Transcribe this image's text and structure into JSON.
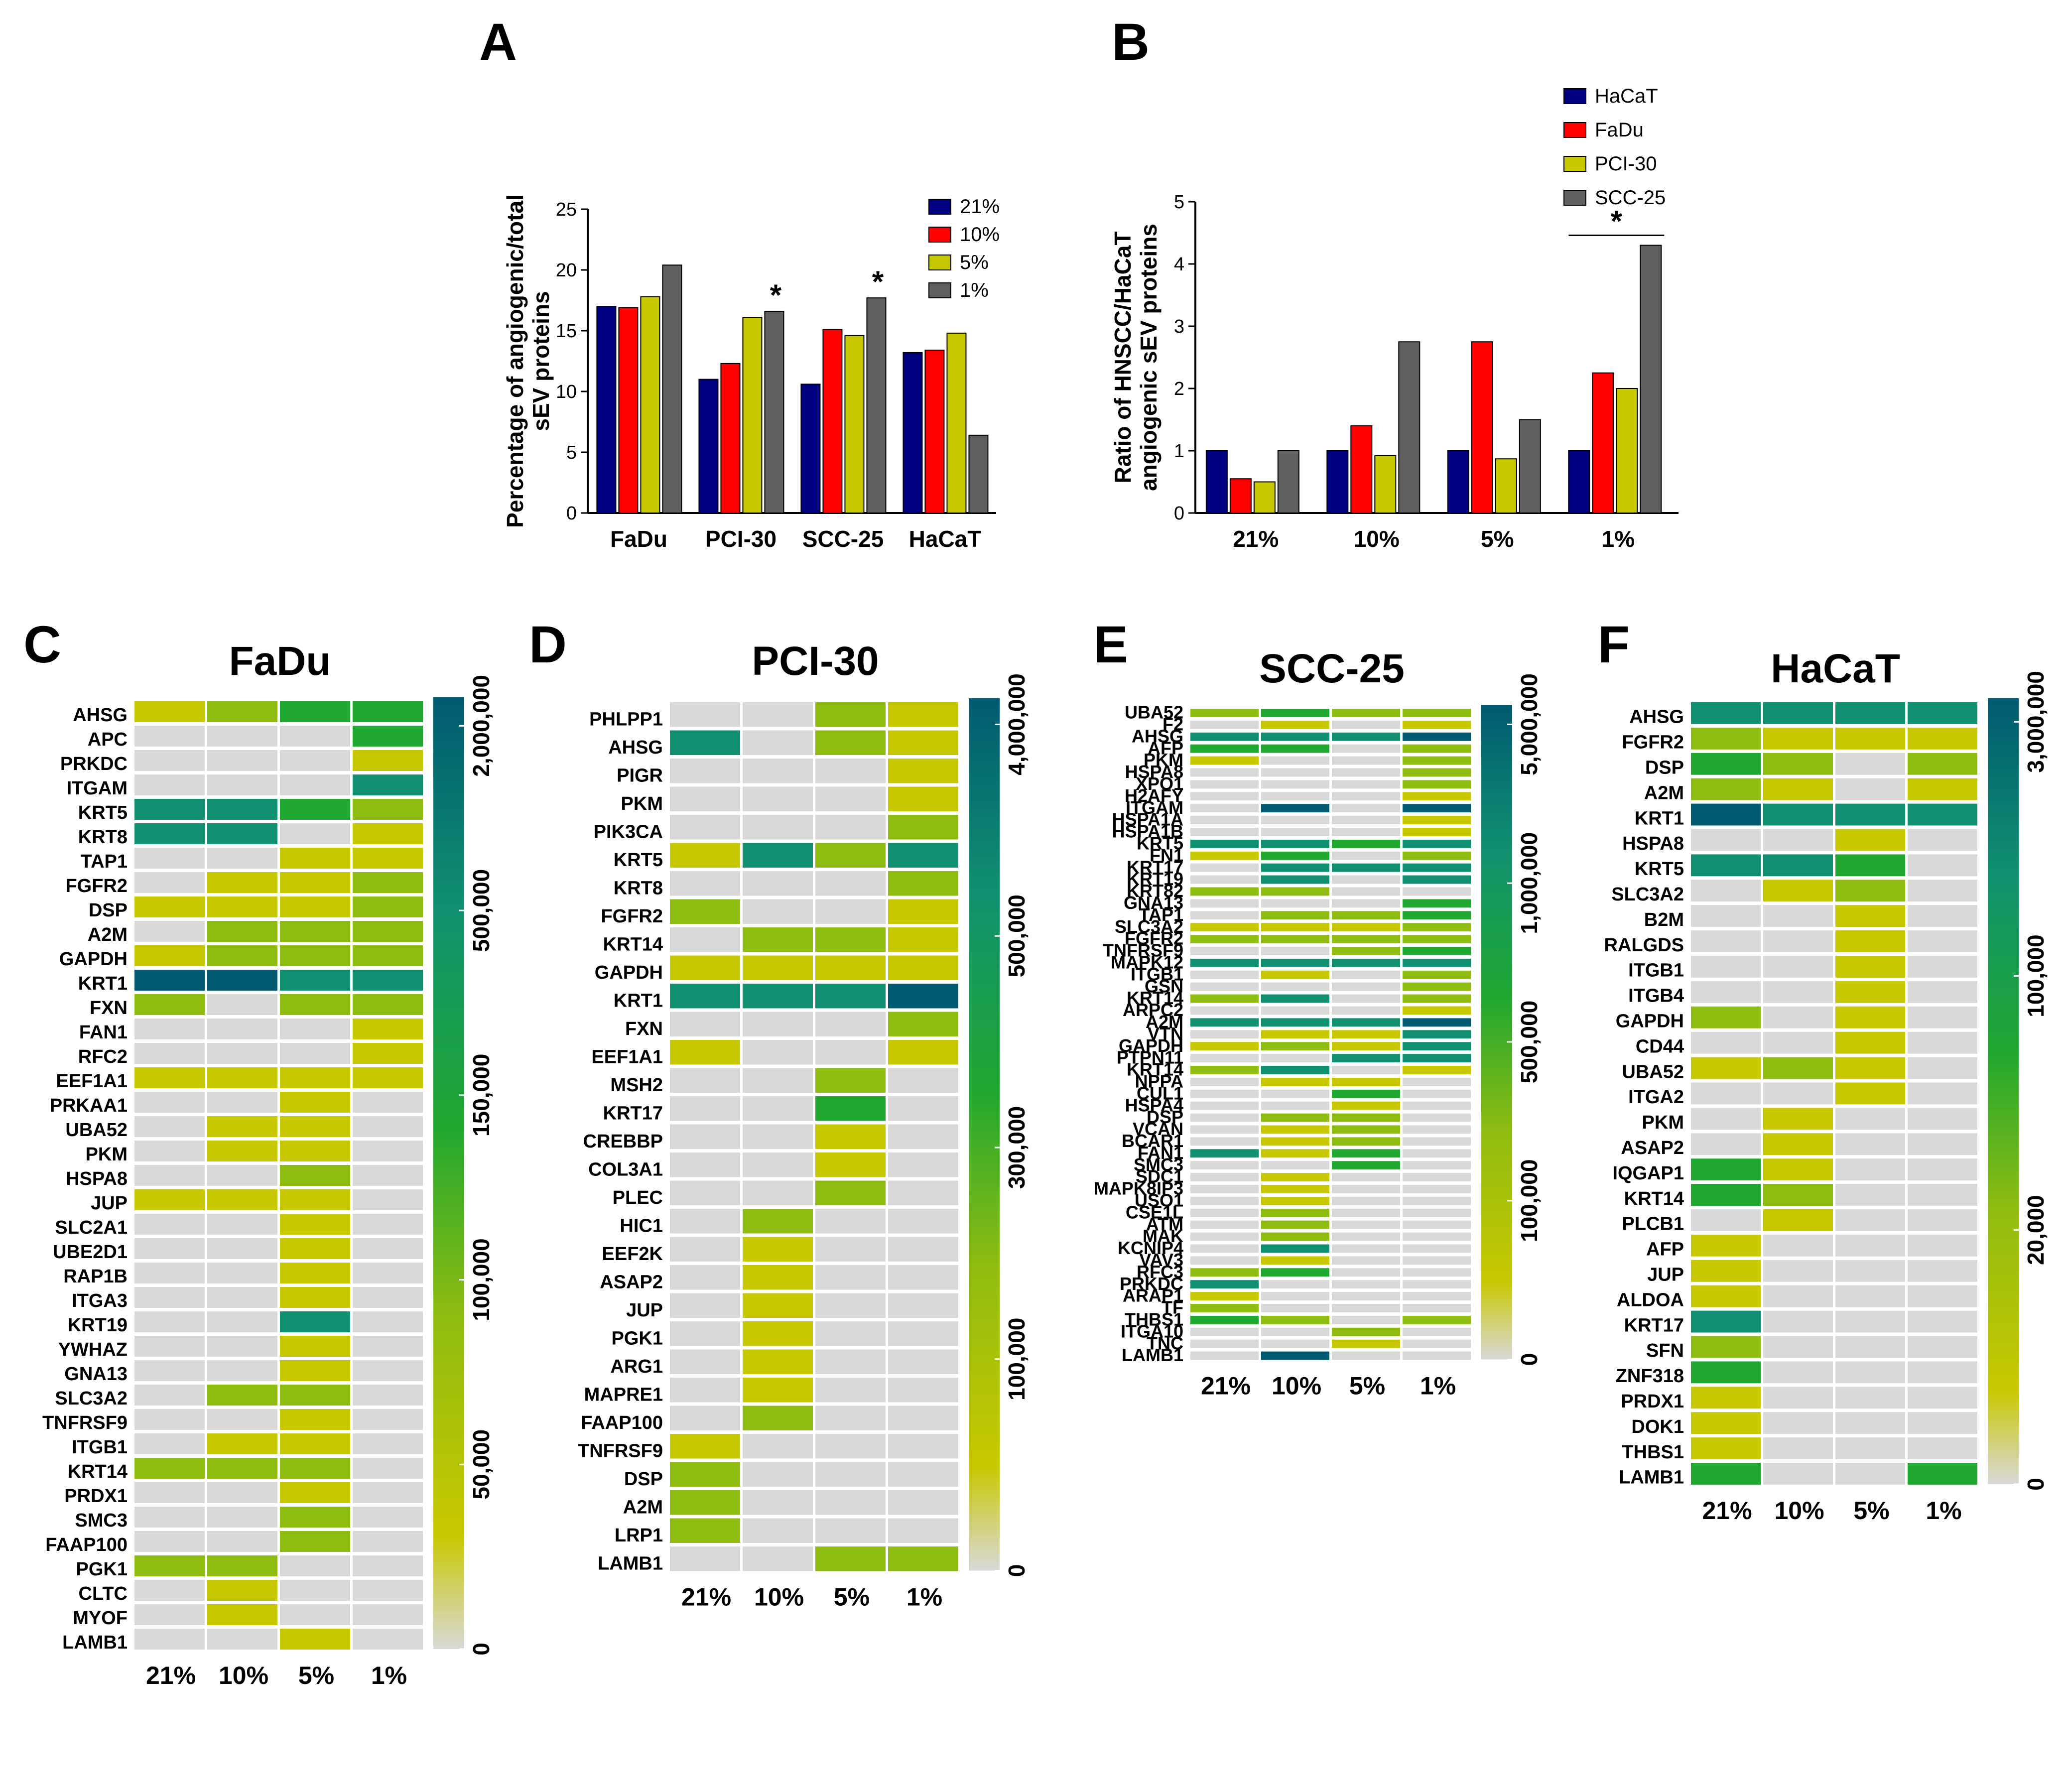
{
  "colors": {
    "hacat": "#000080",
    "fadu": "#ff0000",
    "pci30": "#c8c800",
    "scc25": "#606060",
    "grey": "#d8d8d8",
    "scale": [
      "#d9d9d9",
      "#c8c800",
      "#8fbc10",
      "#20a830",
      "#109070",
      "#005a70"
    ]
  },
  "panel_letters": [
    "A",
    "B",
    "C",
    "D",
    "E",
    "F"
  ],
  "chart_data": [
    {
      "id": "A",
      "type": "bar",
      "ylabel": "Percentage of angiogenic/total sEV proteins",
      "ylabel_lines": [
        "Percentage of angiogenic/total",
        "sEV proteins"
      ],
      "ylim": [
        0,
        25
      ],
      "yticks": [
        "0",
        "5",
        "10",
        "15",
        "20",
        "25"
      ],
      "categories": [
        "FaDu",
        "PCI-30",
        "SCC-25",
        "HaCaT"
      ],
      "series": [
        {
          "name": "21%",
          "color": "#000080",
          "values": [
            17.0,
            11.0,
            10.6,
            13.2
          ]
        },
        {
          "name": "10%",
          "color": "#ff0000",
          "values": [
            16.9,
            12.3,
            15.1,
            13.4
          ]
        },
        {
          "name": "5%",
          "color": "#c8c800",
          "values": [
            17.8,
            16.1,
            14.6,
            14.8
          ]
        },
        {
          "name": "1%",
          "color": "#606060",
          "values": [
            20.4,
            16.6,
            17.7,
            6.4
          ]
        }
      ],
      "significance": [
        {
          "category": "PCI-30",
          "series": "1%",
          "mark": "*"
        },
        {
          "category": "SCC-25",
          "series": "1%",
          "mark": "*"
        }
      ],
      "legend": "top-right"
    },
    {
      "id": "B",
      "type": "bar",
      "ylabel": "Ratio of HNSCC/HaCaT angiogenic sEV proteins",
      "ylabel_lines": [
        "Ratio of HNSCC/HaCaT",
        "angiogenic sEV proteins"
      ],
      "ylim": [
        0,
        5
      ],
      "yticks": [
        "0",
        "1",
        "2",
        "3",
        "4",
        "5"
      ],
      "categories": [
        "21%",
        "10%",
        "5%",
        "1%"
      ],
      "series": [
        {
          "name": "HaCaT",
          "color": "#000080",
          "values": [
            1,
            1,
            1,
            1
          ]
        },
        {
          "name": "FaDu",
          "color": "#ff0000",
          "values": [
            0.55,
            1.4,
            2.75,
            2.25
          ]
        },
        {
          "name": "PCI-30",
          "color": "#c8c800",
          "values": [
            0.5,
            0.92,
            0.87,
            2.0
          ]
        },
        {
          "name": "SCC-25",
          "color": "#606060",
          "values": [
            1,
            2.75,
            1.5,
            4.3
          ]
        }
      ],
      "significance": [
        {
          "category": "1%",
          "mark": "*"
        }
      ],
      "legend": "top-right"
    },
    {
      "id": "C",
      "type": "heatmap",
      "title": "FaDu",
      "columns": [
        "21%",
        "10%",
        "5%",
        "1%"
      ],
      "colorbar_ticks": [
        "0",
        "50,000",
        "100,000",
        "150,000",
        "500,000",
        "2,000,000"
      ],
      "rows": [
        "AHSG",
        "APC",
        "PRKDC",
        "ITGAM",
        "KRT5",
        "KRT8",
        "TAP1",
        "FGFR2",
        "DSP",
        "A2M",
        "GAPDH",
        "KRT1",
        "FXN",
        "FAN1",
        "RFC2",
        "EEF1A1",
        "PRKAA1",
        "UBA52",
        "PKM",
        "HSPA8",
        "JUP",
        "SLC2A1",
        "UBE2D1",
        "RAP1B",
        "ITGA3",
        "KRT19",
        "YWHAZ",
        "GNA13",
        "SLC3A2",
        "TNFRSF9",
        "ITGB1",
        "KRT14",
        "PRDX1",
        "SMC3",
        "FAAP100",
        "PGK1",
        "CLTC",
        "MYOF",
        "LAMB1"
      ],
      "levels": [
        [
          1,
          2,
          3,
          3
        ],
        [
          0,
          0,
          0,
          3
        ],
        [
          0,
          0,
          0,
          1
        ],
        [
          0,
          0,
          0,
          4
        ],
        [
          4,
          4,
          3,
          2
        ],
        [
          4,
          4,
          0,
          1
        ],
        [
          0,
          0,
          1,
          1
        ],
        [
          0,
          1,
          1,
          2
        ],
        [
          1,
          1,
          1,
          2
        ],
        [
          0,
          2,
          2,
          2
        ],
        [
          1,
          2,
          2,
          2
        ],
        [
          5,
          5,
          4,
          4
        ],
        [
          2,
          0,
          2,
          2
        ],
        [
          0,
          0,
          0,
          1
        ],
        [
          0,
          0,
          0,
          1
        ],
        [
          1,
          1,
          1,
          1
        ],
        [
          0,
          0,
          1,
          0
        ],
        [
          0,
          1,
          1,
          0
        ],
        [
          0,
          1,
          1,
          0
        ],
        [
          0,
          0,
          2,
          0
        ],
        [
          1,
          1,
          1,
          0
        ],
        [
          0,
          0,
          1,
          0
        ],
        [
          0,
          0,
          1,
          0
        ],
        [
          0,
          0,
          1,
          0
        ],
        [
          0,
          0,
          1,
          0
        ],
        [
          0,
          0,
          4,
          0
        ],
        [
          0,
          0,
          1,
          0
        ],
        [
          0,
          0,
          1,
          0
        ],
        [
          0,
          2,
          2,
          0
        ],
        [
          0,
          0,
          1,
          0
        ],
        [
          0,
          1,
          1,
          0
        ],
        [
          2,
          2,
          2,
          0
        ],
        [
          0,
          0,
          1,
          0
        ],
        [
          0,
          0,
          2,
          0
        ],
        [
          0,
          0,
          2,
          0
        ],
        [
          2,
          2,
          0,
          0
        ],
        [
          0,
          1,
          0,
          0
        ],
        [
          0,
          1,
          0,
          0
        ],
        [
          0,
          0,
          1,
          0
        ]
      ]
    },
    {
      "id": "D",
      "type": "heatmap",
      "title": "PCI-30",
      "columns": [
        "21%",
        "10%",
        "5%",
        "1%"
      ],
      "colorbar_ticks": [
        "0",
        "100,000",
        "300,000",
        "500,000",
        "4,000,000"
      ],
      "rows": [
        "PHLPP1",
        "AHSG",
        "PIGR",
        "PKM",
        "PIK3CA",
        "KRT5",
        "KRT8",
        "FGFR2",
        "KRT14",
        "GAPDH",
        "KRT1",
        "FXN",
        "EEF1A1",
        "MSH2",
        "KRT17",
        "CREBBP",
        "COL3A1",
        "PLEC",
        "HIC1",
        "EEF2K",
        "ASAP2",
        "JUP",
        "PGK1",
        "ARG1",
        "MAPRE1",
        "FAAP100",
        "TNFRSF9",
        "DSP",
        "A2M",
        "LRP1",
        "LAMB1"
      ],
      "levels": [
        [
          0,
          0,
          2,
          1
        ],
        [
          4,
          0,
          2,
          1
        ],
        [
          0,
          0,
          0,
          1
        ],
        [
          0,
          0,
          0,
          1
        ],
        [
          0,
          0,
          0,
          2
        ],
        [
          1,
          4,
          2,
          4
        ],
        [
          0,
          0,
          0,
          2
        ],
        [
          2,
          0,
          0,
          1
        ],
        [
          0,
          2,
          2,
          1
        ],
        [
          1,
          1,
          1,
          1
        ],
        [
          4,
          4,
          4,
          5
        ],
        [
          0,
          0,
          0,
          2
        ],
        [
          1,
          0,
          0,
          1
        ],
        [
          0,
          0,
          2,
          0
        ],
        [
          0,
          0,
          3,
          0
        ],
        [
          0,
          0,
          1,
          0
        ],
        [
          0,
          0,
          1,
          0
        ],
        [
          0,
          0,
          2,
          0
        ],
        [
          0,
          2,
          0,
          0
        ],
        [
          0,
          1,
          0,
          0
        ],
        [
          0,
          1,
          0,
          0
        ],
        [
          0,
          1,
          0,
          0
        ],
        [
          0,
          1,
          0,
          0
        ],
        [
          0,
          1,
          0,
          0
        ],
        [
          0,
          1,
          0,
          0
        ],
        [
          0,
          2,
          0,
          0
        ],
        [
          1,
          0,
          0,
          0
        ],
        [
          2,
          0,
          0,
          0
        ],
        [
          2,
          0,
          0,
          0
        ],
        [
          2,
          0,
          0,
          0
        ],
        [
          0,
          0,
          2,
          2
        ]
      ]
    },
    {
      "id": "E",
      "type": "heatmap",
      "title": "SCC-25",
      "columns": [
        "21%",
        "10%",
        "5%",
        "1%"
      ],
      "colorbar_ticks": [
        "0",
        "100,000",
        "500,000",
        "1,000,000",
        "5,000,000"
      ],
      "rows": [
        "UBA52",
        "F2",
        "AHSG",
        "AFP",
        "PKM",
        "HSPA8",
        "XPO1",
        "H2AFY",
        "ITGAM",
        "HSPA1A",
        "HSPA1B",
        "KRT5",
        "FN1",
        "KRT17",
        "KRT19",
        "KRT82",
        "GNA13",
        "TAP1",
        "SLC3A2",
        "FGFR2",
        "TNFRSF9",
        "MAPK12",
        "ITGB1",
        "GSN",
        "KRT14",
        "ARPC2",
        "A2M",
        "VTN",
        "GAPDH",
        "PTPN11",
        "KRT14",
        "NPPA",
        "CUL1",
        "HSPA4",
        "DSP",
        "VCAN",
        "BCAR1",
        "FAN1",
        "SMC3",
        "SDC1",
        "MAPK8IP3",
        "USO1",
        "CSE1L",
        "ATM",
        "MAK",
        "KCNIP4",
        "VAV3",
        "RFC3",
        "PRKDC",
        "ARAP1",
        "TF",
        "THBS1",
        "ITGA10",
        "TNC",
        "LAMB1"
      ],
      "levels": [
        [
          2,
          3,
          2,
          2
        ],
        [
          0,
          1,
          0,
          1
        ],
        [
          4,
          4,
          4,
          5
        ],
        [
          3,
          3,
          0,
          2
        ],
        [
          1,
          0,
          0,
          2
        ],
        [
          0,
          0,
          0,
          2
        ],
        [
          0,
          0,
          0,
          2
        ],
        [
          0,
          0,
          0,
          1
        ],
        [
          0,
          5,
          0,
          5
        ],
        [
          0,
          0,
          0,
          1
        ],
        [
          0,
          0,
          0,
          1
        ],
        [
          4,
          4,
          3,
          4
        ],
        [
          1,
          3,
          0,
          2
        ],
        [
          0,
          4,
          4,
          4
        ],
        [
          0,
          4,
          0,
          4
        ],
        [
          2,
          2,
          0,
          0
        ],
        [
          0,
          0,
          0,
          3
        ],
        [
          0,
          2,
          2,
          3
        ],
        [
          1,
          1,
          1,
          2
        ],
        [
          2,
          2,
          2,
          2
        ],
        [
          0,
          0,
          2,
          3
        ],
        [
          4,
          4,
          4,
          4
        ],
        [
          0,
          1,
          0,
          2
        ],
        [
          0,
          0,
          0,
          2
        ],
        [
          2,
          4,
          0,
          2
        ],
        [
          0,
          0,
          0,
          1
        ],
        [
          4,
          4,
          4,
          5
        ],
        [
          0,
          1,
          1,
          4
        ],
        [
          1,
          2,
          1,
          4
        ],
        [
          0,
          0,
          4,
          4
        ],
        [
          2,
          4,
          0,
          1
        ],
        [
          0,
          1,
          1,
          0
        ],
        [
          0,
          0,
          3,
          0
        ],
        [
          0,
          0,
          1,
          0
        ],
        [
          0,
          2,
          2,
          0
        ],
        [
          0,
          1,
          2,
          0
        ],
        [
          0,
          1,
          2,
          0
        ],
        [
          4,
          1,
          3,
          0
        ],
        [
          0,
          0,
          3,
          0
        ],
        [
          0,
          1,
          0,
          0
        ],
        [
          0,
          1,
          0,
          0
        ],
        [
          0,
          1,
          0,
          0
        ],
        [
          0,
          2,
          0,
          0
        ],
        [
          0,
          2,
          0,
          0
        ],
        [
          0,
          2,
          0,
          0
        ],
        [
          0,
          4,
          0,
          0
        ],
        [
          0,
          1,
          0,
          0
        ],
        [
          2,
          3,
          0,
          0
        ],
        [
          4,
          0,
          0,
          0
        ],
        [
          1,
          0,
          0,
          0
        ],
        [
          2,
          0,
          0,
          0
        ],
        [
          3,
          2,
          0,
          2
        ],
        [
          0,
          0,
          2,
          0
        ],
        [
          0,
          0,
          1,
          0
        ],
        [
          0,
          5,
          0,
          0
        ]
      ]
    },
    {
      "id": "F",
      "type": "heatmap",
      "title": "HaCaT",
      "columns": [
        "21%",
        "10%",
        "5%",
        "1%"
      ],
      "colorbar_ticks": [
        "0",
        "20,000",
        "100,000",
        "3,000,000"
      ],
      "rows": [
        "AHSG",
        "FGFR2",
        "DSP",
        "A2M",
        "KRT1",
        "HSPA8",
        "KRT5",
        "SLC3A2",
        "B2M",
        "RALGDS",
        "ITGB1",
        "ITGB4",
        "GAPDH",
        "CD44",
        "UBA52",
        "ITGA2",
        "PKM",
        "ASAP2",
        "IQGAP1",
        "KRT14",
        "PLCB1",
        "AFP",
        "JUP",
        "ALDOA",
        "KRT17",
        "SFN",
        "ZNF318",
        "PRDX1",
        "DOK1",
        "THBS1",
        "LAMB1"
      ],
      "levels": [
        [
          4,
          4,
          4,
          4
        ],
        [
          2,
          1,
          1,
          1
        ],
        [
          3,
          2,
          0,
          2
        ],
        [
          2,
          1,
          0,
          1
        ],
        [
          5,
          4,
          4,
          4
        ],
        [
          0,
          0,
          1,
          0
        ],
        [
          4,
          4,
          3,
          0
        ],
        [
          0,
          1,
          2,
          0
        ],
        [
          0,
          0,
          1,
          0
        ],
        [
          0,
          0,
          1,
          0
        ],
        [
          0,
          0,
          1,
          0
        ],
        [
          0,
          0,
          1,
          0
        ],
        [
          2,
          0,
          1,
          0
        ],
        [
          0,
          0,
          1,
          0
        ],
        [
          1,
          2,
          1,
          0
        ],
        [
          0,
          0,
          1,
          0
        ],
        [
          0,
          1,
          0,
          0
        ],
        [
          0,
          1,
          0,
          0
        ],
        [
          3,
          1,
          0,
          0
        ],
        [
          3,
          2,
          0,
          0
        ],
        [
          0,
          1,
          0,
          0
        ],
        [
          1,
          0,
          0,
          0
        ],
        [
          1,
          0,
          0,
          0
        ],
        [
          1,
          0,
          0,
          0
        ],
        [
          4,
          0,
          0,
          0
        ],
        [
          2,
          0,
          0,
          0
        ],
        [
          3,
          0,
          0,
          0
        ],
        [
          1,
          0,
          0,
          0
        ],
        [
          1,
          0,
          0,
          0
        ],
        [
          1,
          0,
          0,
          0
        ],
        [
          3,
          0,
          0,
          3
        ]
      ]
    }
  ]
}
